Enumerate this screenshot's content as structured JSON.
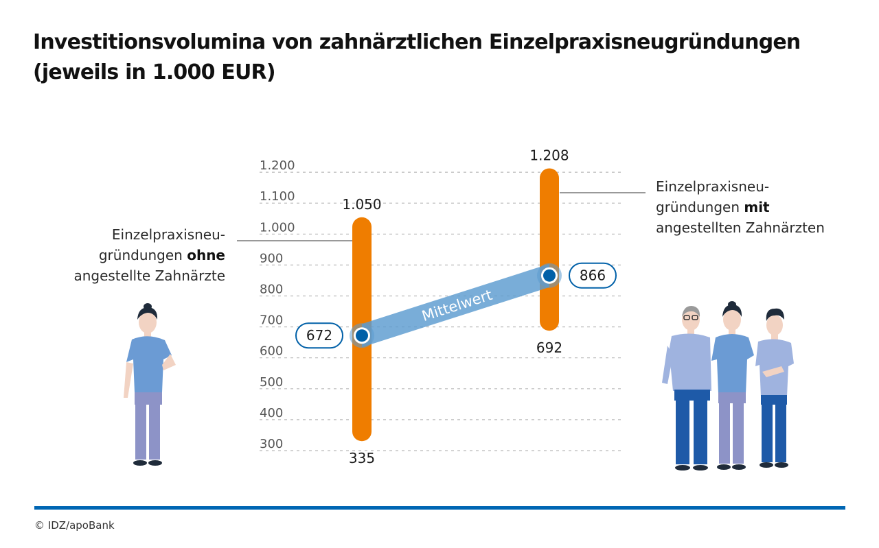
{
  "title_line1": "Investitionsvolumina von zahnärztlichen Einzelpraxisneugründungen",
  "title_line2": "(jeweils in 1.000 EUR)",
  "left_label": {
    "line1": "Einzelpraxisneu-",
    "line2_pre": "gründungen ",
    "line2_bold": "ohne",
    "line3": "angestellte Zahnärzte"
  },
  "right_label": {
    "line1": "Einzelpraxisneu-",
    "line2_pre": "gründungen ",
    "line2_bold": "mit",
    "line3": "angestellten Zahnärzten"
  },
  "footer": "© IDZ/apoBank",
  "colors": {
    "range": "#ef7d00",
    "mean_band": "#5b9bd0",
    "mean_dot": "#0060a8",
    "rule": "#0066b3"
  },
  "chart_data": {
    "type": "range",
    "title": "Investitionsvolumina von zahnärztlichen Einzelpraxisneugründungen (jeweils in 1.000 EUR)",
    "y_ticks": [
      {
        "value": 1200,
        "label": "1.200"
      },
      {
        "value": 1100,
        "label": "1.100"
      },
      {
        "value": 1000,
        "label": "1.000"
      },
      {
        "value": 900,
        "label": "900"
      },
      {
        "value": 800,
        "label": "800"
      },
      {
        "value": 700,
        "label": "700"
      },
      {
        "value": 600,
        "label": "600"
      },
      {
        "value": 500,
        "label": "500"
      },
      {
        "value": 400,
        "label": "400"
      },
      {
        "value": 300,
        "label": "300"
      }
    ],
    "ylim": [
      300,
      1200
    ],
    "grid": true,
    "mean_label": "Mittelwert",
    "series": [
      {
        "min": 335,
        "max": 1050,
        "mean": 672,
        "min_label": "335",
        "max_label": "1.050",
        "mean_label": "672"
      },
      {
        "min": 692,
        "max": 1208,
        "mean": 866,
        "min_label": "692",
        "max_label": "1.208",
        "mean_label": "866"
      }
    ]
  }
}
